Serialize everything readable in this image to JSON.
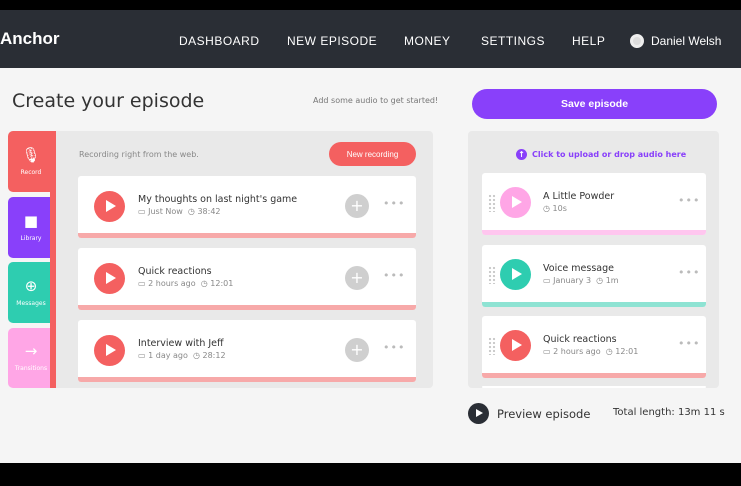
{
  "nav": {
    "logo": "Anchor",
    "items": [
      "DASHBOARD",
      "NEW EPISODE",
      "MONEY",
      "SETTINGS",
      "HELP"
    ],
    "user": "Daniel Welsh"
  },
  "page": {
    "title": "Create your episode",
    "hint": "Add some audio to get started!",
    "save_label": "Save episode"
  },
  "tabs": [
    {
      "label": "Record",
      "icon": "microphone-icon",
      "color": "#f46060"
    },
    {
      "label": "Library",
      "icon": "folder-icon",
      "color": "#8940fa"
    },
    {
      "label": "Messages",
      "icon": "message-plus-icon",
      "color": "#2ecdb0"
    },
    {
      "label": "Transitions",
      "icon": "arrow-right-icon",
      "color": "#ffa6e6"
    }
  ],
  "record": {
    "note": "Recording right from the web.",
    "new_label": "New recording",
    "items": [
      {
        "title": "My thoughts on last night's game",
        "date": "Just Now",
        "duration": "38:42"
      },
      {
        "title": "Quick reactions",
        "date": "2 hours ago",
        "duration": "12:01"
      },
      {
        "title": "Interview with Jeff",
        "date": "1 day ago",
        "duration": "28:12"
      }
    ]
  },
  "episode": {
    "upload": "Click to upload or drop audio here",
    "items": [
      {
        "title": "A Little Powder",
        "date": null,
        "duration": "10s",
        "color": "#ffa6e6"
      },
      {
        "title": "Voice message",
        "date": "January 3",
        "duration": "1m",
        "color": "#2ecdb0"
      },
      {
        "title": "Quick reactions",
        "date": "2 hours ago",
        "duration": "12:01",
        "color": "#f46060"
      }
    ],
    "preview_label": "Preview episode",
    "total": "Total length: 13m 11 s"
  }
}
